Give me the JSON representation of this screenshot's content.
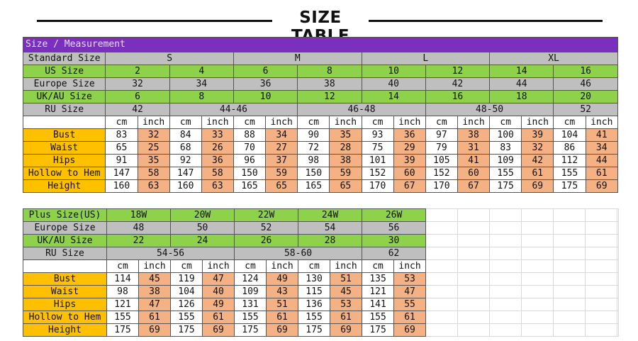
{
  "title": "SIZE TABLE",
  "table1": {
    "header": "Size / Measurement",
    "standard_label": "Standard Size",
    "standard": [
      "S",
      "M",
      "L",
      "XL"
    ],
    "us_label": "US Size",
    "us": [
      "2",
      "4",
      "6",
      "8",
      "10",
      "12",
      "14",
      "16"
    ],
    "eu_label": "Europe Size",
    "eu": [
      "32",
      "34",
      "36",
      "38",
      "40",
      "42",
      "44",
      "46"
    ],
    "ukau_label": "UK/AU Size",
    "ukau": [
      "6",
      "8",
      "10",
      "12",
      "14",
      "16",
      "18",
      "20"
    ],
    "ru_label": "RU Size",
    "ru": [
      "42",
      "44-46",
      "46-48",
      "48-50",
      "52"
    ],
    "unit_cm": "cm",
    "unit_inch": "inch",
    "rows": [
      {
        "label": "Bust",
        "values": [
          "83",
          "32",
          "84",
          "33",
          "88",
          "34",
          "90",
          "35",
          "93",
          "36",
          "97",
          "38",
          "100",
          "39",
          "104",
          "41"
        ]
      },
      {
        "label": "Waist",
        "values": [
          "65",
          "25",
          "68",
          "26",
          "70",
          "27",
          "72",
          "28",
          "75",
          "29",
          "79",
          "31",
          "83",
          "32",
          "86",
          "34"
        ]
      },
      {
        "label": "Hips",
        "values": [
          "91",
          "35",
          "92",
          "36",
          "96",
          "37",
          "98",
          "38",
          "101",
          "39",
          "105",
          "41",
          "109",
          "42",
          "112",
          "44"
        ]
      },
      {
        "label": "Hollow to Hem",
        "values": [
          "147",
          "58",
          "147",
          "58",
          "150",
          "59",
          "150",
          "59",
          "152",
          "60",
          "152",
          "60",
          "155",
          "61",
          "155",
          "61"
        ]
      },
      {
        "label": "Height",
        "values": [
          "160",
          "63",
          "160",
          "63",
          "165",
          "65",
          "165",
          "65",
          "170",
          "67",
          "170",
          "67",
          "175",
          "69",
          "175",
          "69"
        ]
      }
    ]
  },
  "table2": {
    "header": "Plus Size(US)",
    "plus": [
      "18W",
      "20W",
      "22W",
      "24W",
      "26W"
    ],
    "eu_label": "Europe Size",
    "eu": [
      "48",
      "50",
      "52",
      "54",
      "56"
    ],
    "ukau_label": "UK/AU Size",
    "ukau": [
      "22",
      "24",
      "26",
      "28",
      "30"
    ],
    "ru_label": "RU Size",
    "ru": [
      "54-56",
      "58-60",
      "62"
    ],
    "unit_cm": "cm",
    "unit_inch": "inch",
    "rows": [
      {
        "label": "Bust",
        "values": [
          "114",
          "45",
          "119",
          "47",
          "124",
          "49",
          "130",
          "51",
          "135",
          "53"
        ]
      },
      {
        "label": "Waist",
        "values": [
          "98",
          "38",
          "104",
          "40",
          "109",
          "43",
          "115",
          "45",
          "121",
          "47"
        ]
      },
      {
        "label": "Hips",
        "values": [
          "121",
          "47",
          "126",
          "49",
          "131",
          "51",
          "136",
          "53",
          "141",
          "55"
        ]
      },
      {
        "label": "Hollow to Hem",
        "values": [
          "155",
          "61",
          "155",
          "61",
          "155",
          "61",
          "155",
          "61",
          "155",
          "61"
        ]
      },
      {
        "label": "Height",
        "values": [
          "175",
          "69",
          "175",
          "69",
          "175",
          "69",
          "175",
          "69",
          "175",
          "69"
        ]
      }
    ]
  },
  "colors": {
    "header_purple": "#7b2fbf",
    "label_grey": "#bfbfbf",
    "size_green": "#8ed14b",
    "measure_orange": "#ffc000",
    "inch_salmon": "#f4b183"
  }
}
